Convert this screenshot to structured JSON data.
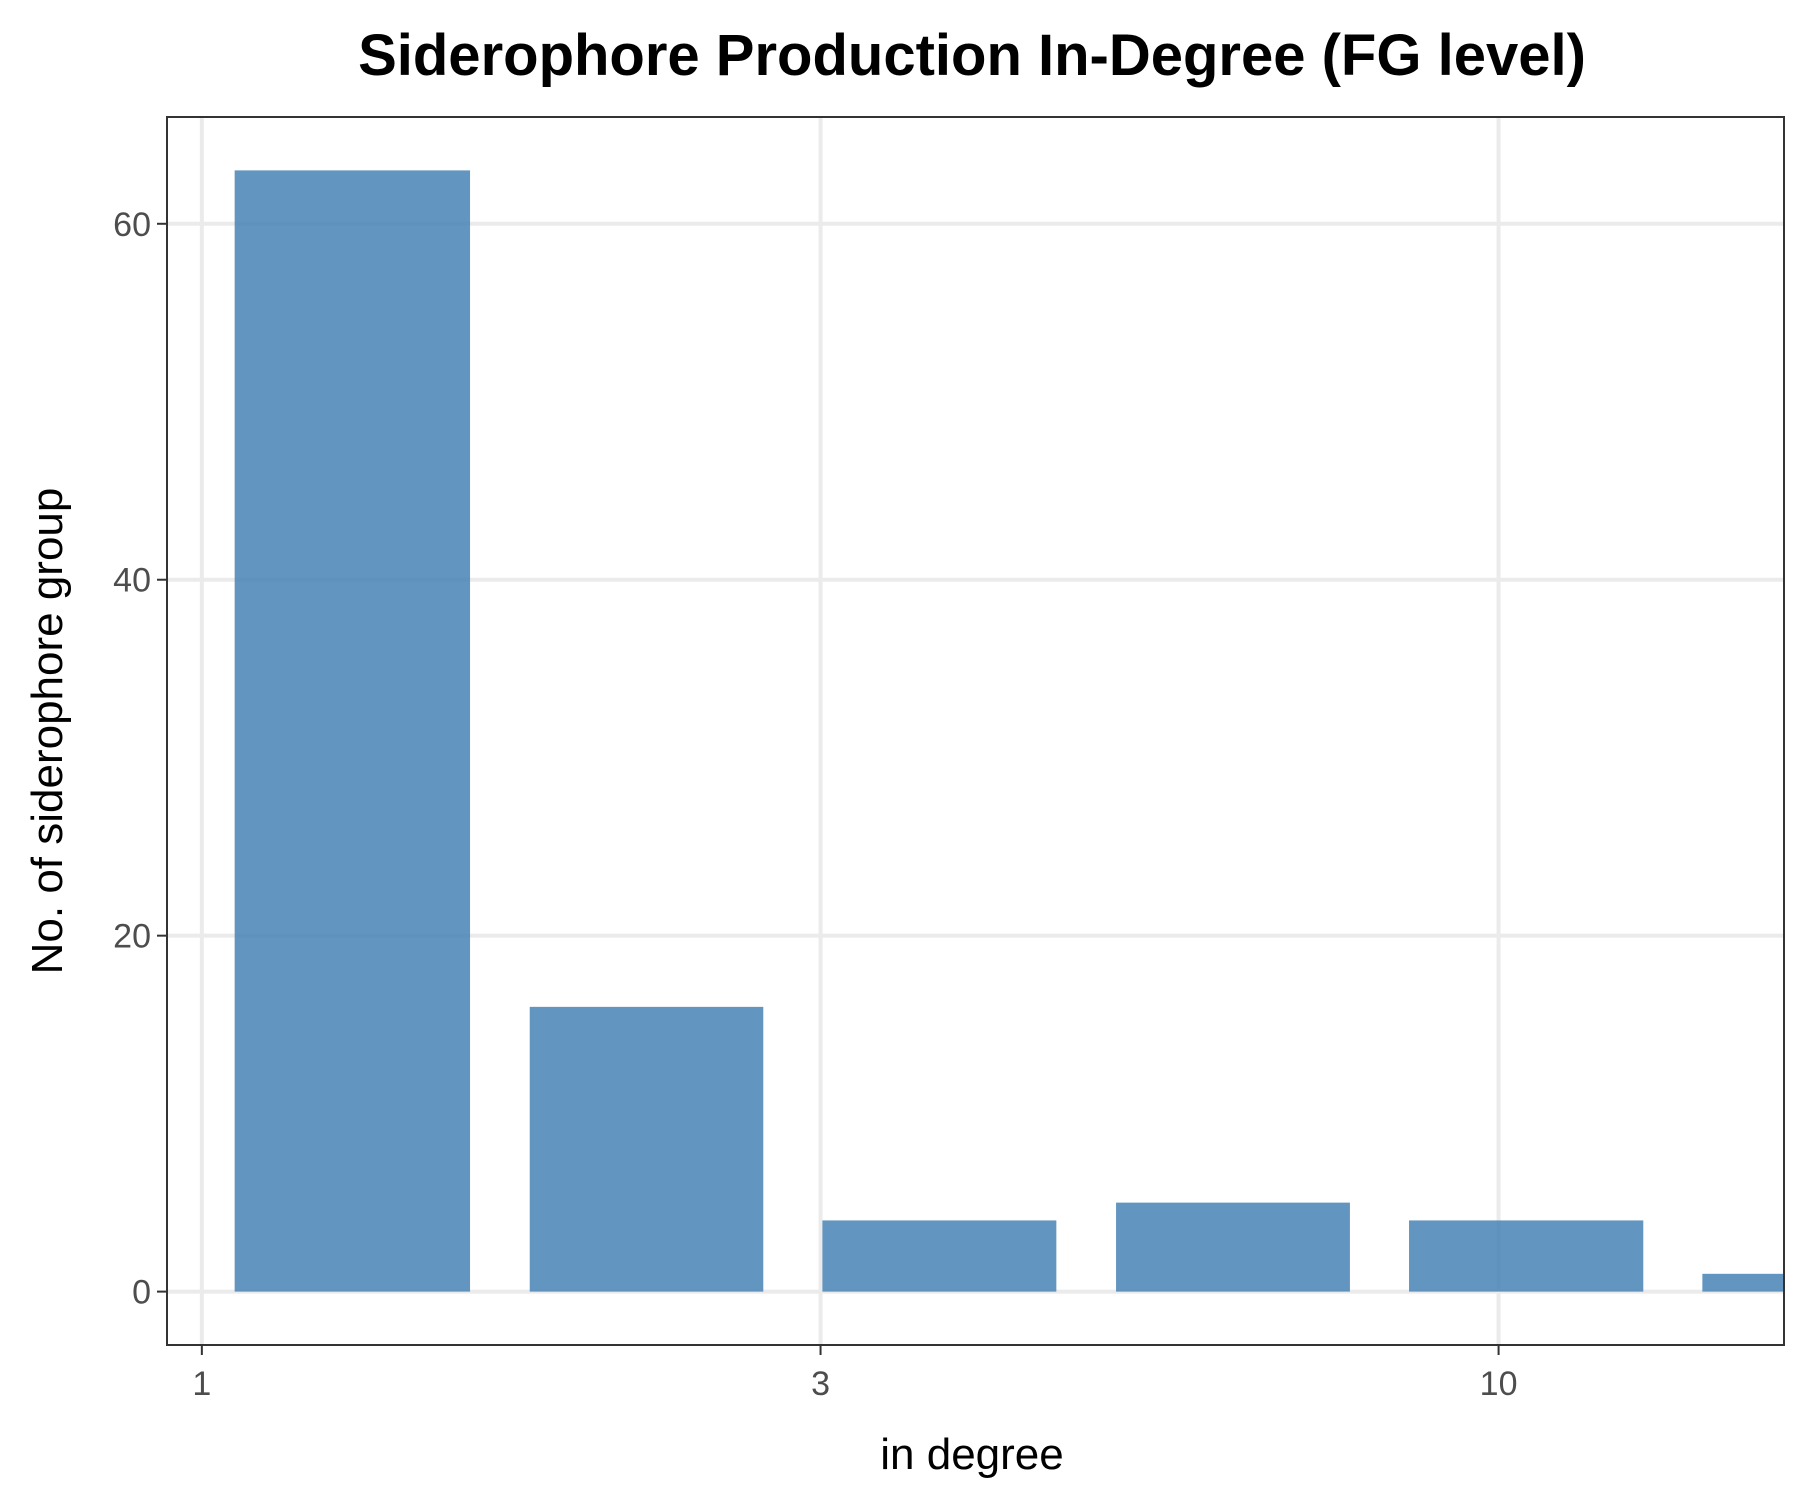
{
  "chart_data": {
    "type": "bar",
    "title": "Siderophore Production In-Degree (FG level)",
    "xlabel": "in degree",
    "ylabel": "No. of siderophore group",
    "x_scale": "log10",
    "x_ticks": [
      1,
      3,
      10
    ],
    "x_tick_labels": [
      "1",
      "3",
      "10"
    ],
    "y_ticks": [
      0,
      20,
      40,
      60
    ],
    "y_tick_labels": [
      "0",
      "20",
      "40",
      "60"
    ],
    "xlim": [
      0.94,
      16.6
    ],
    "ylim": [
      -3,
      66
    ],
    "bins": [
      {
        "x_start": 1.06,
        "x_end": 1.61,
        "value": 63
      },
      {
        "x_start": 1.79,
        "x_end": 2.71,
        "value": 16
      },
      {
        "x_start": 3.01,
        "x_end": 4.56,
        "value": 4
      },
      {
        "x_start": 5.07,
        "x_end": 7.68,
        "value": 5
      },
      {
        "x_start": 8.53,
        "x_end": 12.93,
        "value": 4
      },
      {
        "x_start": 14.36,
        "x_end": 21.77,
        "value": 1
      }
    ],
    "grid": true,
    "legend": "none",
    "bar_color": "#4682b4",
    "background": "#ffffff"
  }
}
